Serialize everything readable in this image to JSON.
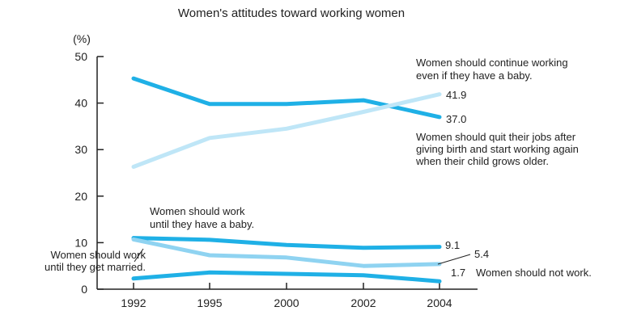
{
  "chart_data": {
    "type": "line",
    "title": "Women's attitudes toward working women",
    "ylabel": "(%)",
    "xlabel": "",
    "x": [
      "1992",
      "1995",
      "2000",
      "2002",
      "2004"
    ],
    "ylim": [
      0,
      50
    ],
    "yticks": [
      "0",
      "10",
      "20",
      "30",
      "40",
      "50"
    ],
    "grid": false,
    "series": [
      {
        "key": "quit_return",
        "values": [
          45.3,
          39.8,
          39.8,
          40.6,
          37.0
        ],
        "color": "#1fb0e6",
        "end_label": "37.0",
        "annotation": [
          "Women should quit their jobs after",
          "giving birth and start working again",
          "when their child grows older."
        ]
      },
      {
        "key": "continue",
        "values": [
          26.3,
          32.5,
          34.5,
          38.1,
          41.9
        ],
        "color": "#bfe6f7",
        "end_label": "41.9",
        "annotation": [
          "Women should continue working",
          "even if they have a baby."
        ]
      },
      {
        "key": "until_baby",
        "values": [
          11.0,
          10.6,
          9.5,
          8.9,
          9.1
        ],
        "color": "#1fb0e6",
        "end_label": "9.1",
        "annotation": [
          "Women should work",
          "until they have a baby."
        ]
      },
      {
        "key": "until_married",
        "values": [
          10.7,
          7.3,
          6.8,
          5.0,
          5.4
        ],
        "color": "#8fd3f1",
        "end_label": "5.4",
        "annotation": [
          "Women should work",
          "until they get married."
        ]
      },
      {
        "key": "not_work",
        "values": [
          2.3,
          3.6,
          3.3,
          3.0,
          1.7
        ],
        "color": "#1fb0e6",
        "end_label": "1.7",
        "annotation": [
          "Women should not work."
        ]
      }
    ]
  }
}
